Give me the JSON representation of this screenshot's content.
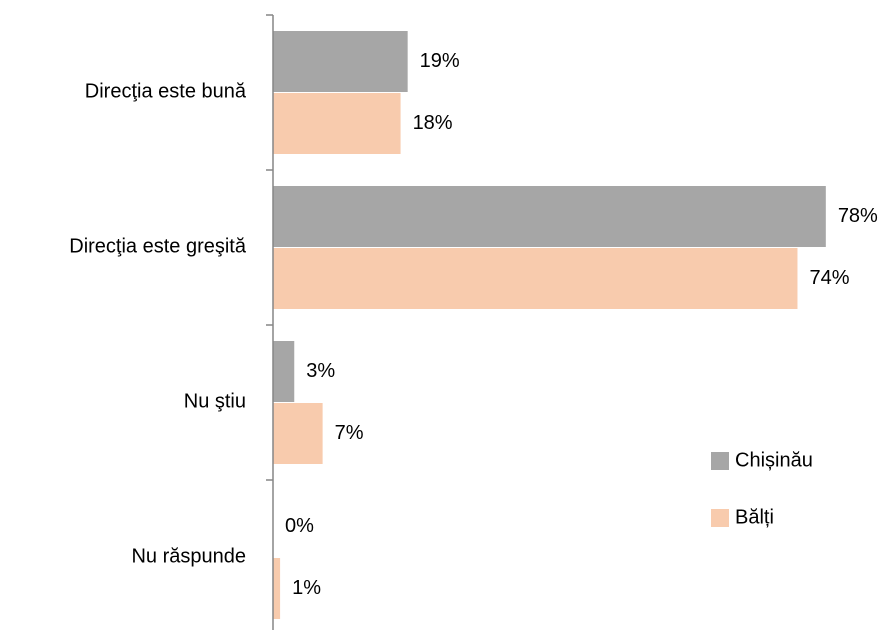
{
  "chart_data": {
    "type": "bar",
    "orientation": "horizontal",
    "categories": [
      "Direcţia este bună",
      "Direcţia este greşită",
      "Nu ştiu",
      "Nu răspunde"
    ],
    "series": [
      {
        "name": "Chișinău",
        "color": "#a6a6a6",
        "values": [
          19,
          78,
          3,
          0
        ],
        "value_labels": [
          "19%",
          "78%",
          "3%",
          "0%"
        ]
      },
      {
        "name": "Bălți",
        "color": "#f8cbad",
        "values": [
          18,
          74,
          7,
          1
        ],
        "value_labels": [
          "18%",
          "74%",
          "7%",
          "1%"
        ]
      }
    ],
    "xlim": [
      0,
      80
    ],
    "legend": "right"
  }
}
